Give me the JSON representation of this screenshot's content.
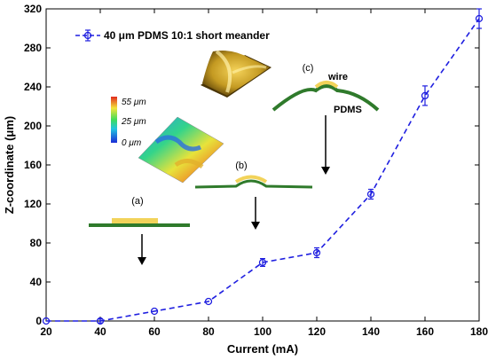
{
  "chart_data": {
    "type": "line",
    "xlabel": "Current (mA)",
    "ylabel": "Z-coordinate (μm)",
    "xlim": [
      20,
      180
    ],
    "ylim": [
      0,
      320
    ],
    "xticks": [
      20,
      40,
      60,
      80,
      100,
      120,
      140,
      160,
      180
    ],
    "yticks": [
      0,
      40,
      80,
      120,
      160,
      200,
      240,
      280,
      320
    ],
    "grid": false,
    "legend_position": "top-left",
    "series": [
      {
        "name": "40 μm PDMS 10:1 short meander",
        "color": "#1f1fe0",
        "line_style": "dashed",
        "x": [
          20,
          40,
          60,
          80,
          100,
          120,
          140,
          160,
          180
        ],
        "y": [
          0,
          0,
          10,
          20,
          60,
          70,
          130,
          231,
          310
        ],
        "y_error": [
          0,
          2,
          0,
          0,
          4,
          5,
          5,
          10,
          10
        ]
      }
    ],
    "annotations": {
      "stage_a": "(a)",
      "stage_b": "(b)",
      "stage_c": "(c)",
      "wire_label": "wire",
      "pdms_label": "PDMS",
      "colorbar_labels": [
        "55 μm",
        "25 μm",
        "0 μm"
      ]
    }
  }
}
